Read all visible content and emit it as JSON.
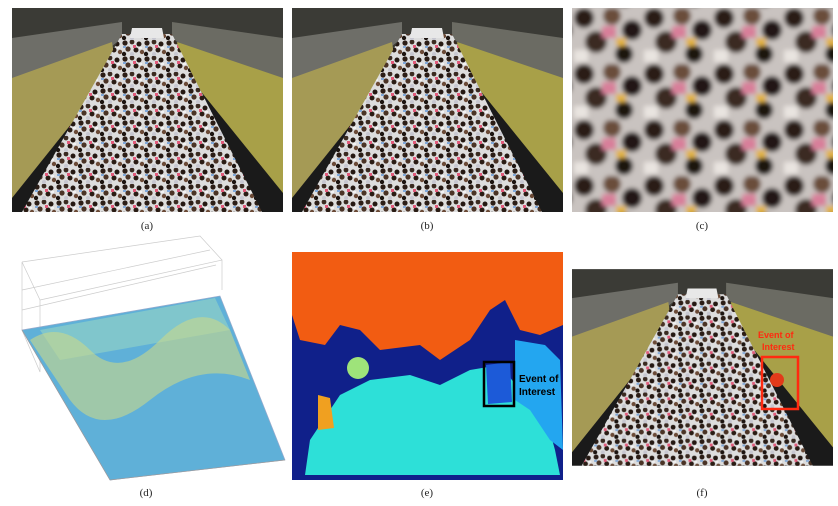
{
  "panels": [
    {
      "caption": "(a)"
    },
    {
      "caption": "(b)"
    },
    {
      "caption": "(c)"
    },
    {
      "caption": "(d)"
    },
    {
      "caption": "(e)"
    },
    {
      "caption": "(f)"
    }
  ],
  "panel_e": {
    "annotation": [
      "Event of",
      "Interest"
    ]
  },
  "panel_f": {
    "annotation": [
      "Event of",
      "Interest"
    ]
  }
}
